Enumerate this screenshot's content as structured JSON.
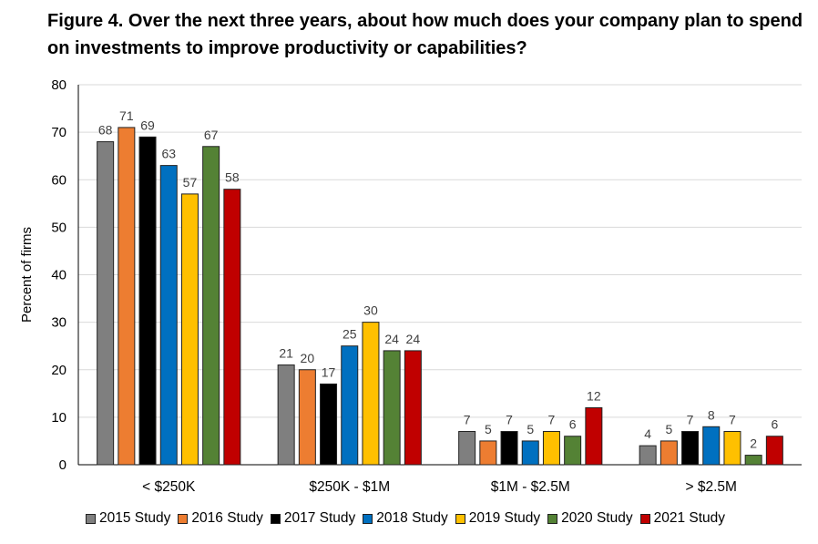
{
  "chart_data": {
    "type": "bar",
    "title": "Figure 4. Over the next three years, about how much does your company plan to spend on investments to improve productivity or capabilities?",
    "xlabel": "",
    "ylabel": "Percent of firms",
    "ylim": [
      0,
      80
    ],
    "yticks": [
      "0",
      "10",
      "20",
      "30",
      "40",
      "50",
      "60",
      "70",
      "80"
    ],
    "grid": true,
    "legend_position": "bottom",
    "categories": [
      "< $250K",
      "$250K - $1M",
      "$1M - $2.5M",
      "> $2.5M"
    ],
    "series": [
      {
        "name": "2015 Study",
        "color": "#7f7f7f",
        "values": [
          68,
          21,
          7,
          4
        ]
      },
      {
        "name": "2016 Study",
        "color": "#ed7d31",
        "values": [
          71,
          20,
          5,
          5
        ]
      },
      {
        "name": "2017 Study",
        "color": "#000000",
        "values": [
          69,
          17,
          7,
          7
        ]
      },
      {
        "name": "2018 Study",
        "color": "#0070c0",
        "values": [
          63,
          25,
          5,
          8
        ]
      },
      {
        "name": "2019 Study",
        "color": "#ffc000",
        "values": [
          57,
          30,
          7,
          7
        ]
      },
      {
        "name": "2020 Study",
        "color": "#548235",
        "values": [
          67,
          24,
          6,
          2
        ]
      },
      {
        "name": "2021 Study",
        "color": "#c00000",
        "values": [
          58,
          24,
          12,
          6
        ]
      }
    ],
    "data_labels": [
      [
        "68",
        "21",
        "7",
        "4"
      ],
      [
        "71",
        "20",
        "5",
        "5"
      ],
      [
        "69",
        "17",
        "7",
        "7"
      ],
      [
        "63",
        "25",
        "5",
        "8"
      ],
      [
        "57",
        "30",
        "7",
        "7"
      ],
      [
        "67",
        "24",
        "6",
        "2"
      ],
      [
        "58",
        "24",
        "12",
        "6"
      ]
    ]
  }
}
